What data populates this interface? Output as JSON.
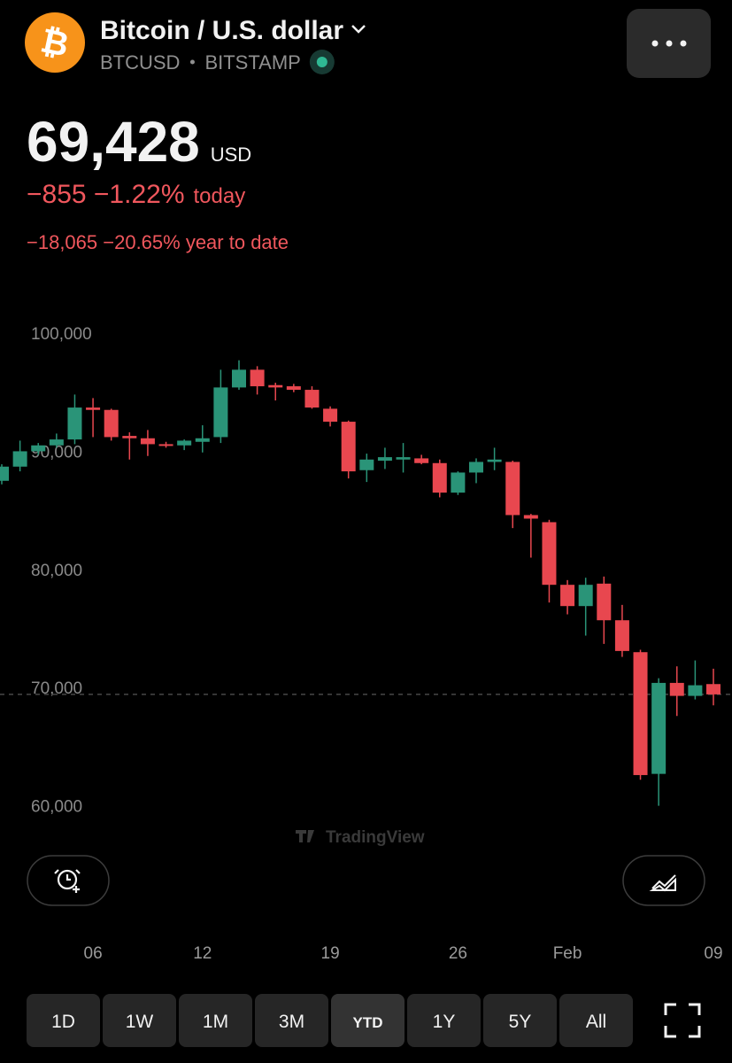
{
  "header": {
    "logo_glyph": "₿",
    "title": "Bitcoin / U.S. dollar",
    "symbol": "BTCUSD",
    "exchange": "BITSTAMP",
    "price": "69,428",
    "currency": "USD",
    "change_today": "−855 −1.22%",
    "today_label": "today",
    "change_ytd": "−18,065 −20.65% year to date"
  },
  "chart_data": {
    "type": "candlestick",
    "watermark": "TradingView",
    "categories": [
      null,
      null,
      null,
      null,
      null,
      "06",
      null,
      null,
      null,
      null,
      null,
      "12",
      null,
      null,
      null,
      null,
      null,
      null,
      "19",
      null,
      null,
      null,
      null,
      null,
      null,
      "26",
      null,
      null,
      null,
      null,
      null,
      "Feb",
      null,
      null,
      null,
      null,
      null,
      null,
      null,
      "09"
    ],
    "open": [
      87500,
      88700,
      90000,
      90500,
      91000,
      93700,
      93500,
      91300,
      91100,
      90600,
      90500,
      90800,
      91200,
      95400,
      96900,
      95600,
      95500,
      95200,
      93600,
      92500,
      88400,
      89200,
      89300,
      89400,
      89000,
      86500,
      88200,
      89100,
      89100,
      84600,
      84000,
      78700,
      76900,
      78800,
      75700,
      73000,
      62700,
      70400,
      69300,
      70300
    ],
    "high": [
      88900,
      90900,
      90700,
      91500,
      94800,
      94500,
      93600,
      91600,
      91800,
      90800,
      91000,
      92200,
      96900,
      97700,
      97200,
      95800,
      95700,
      95500,
      93800,
      92600,
      89800,
      90300,
      90700,
      89700,
      89300,
      88300,
      89400,
      90300,
      89200,
      84700,
      84200,
      79100,
      79300,
      79400,
      77000,
      73200,
      70800,
      71800,
      72300,
      71600
    ],
    "low": [
      87200,
      88300,
      89700,
      90300,
      90600,
      91200,
      90900,
      89300,
      89600,
      90300,
      90100,
      89900,
      90700,
      95200,
      94800,
      94300,
      95000,
      93600,
      92100,
      87700,
      87400,
      88500,
      88200,
      88900,
      86100,
      86300,
      87300,
      88400,
      83500,
      81000,
      77200,
      76200,
      74400,
      73700,
      72600,
      62200,
      60000,
      67600,
      69000,
      68500
    ],
    "close": [
      88700,
      90000,
      90500,
      91000,
      93700,
      93500,
      91200,
      91100,
      90600,
      90500,
      90900,
      91100,
      95400,
      96900,
      95500,
      95400,
      95200,
      93700,
      92500,
      88300,
      89300,
      89500,
      89500,
      89000,
      86500,
      88200,
      89100,
      89300,
      84600,
      84300,
      78700,
      76900,
      78700,
      75700,
      73100,
      62600,
      70400,
      69300,
      70200,
      69428
    ],
    "up_color": "#2a9478",
    "down_color": "#e8474f",
    "ylim": [
      57500,
      103000
    ],
    "yticks": [
      {
        "value": 60000,
        "label": "60,000"
      },
      {
        "value": 70000,
        "label": "70,000"
      },
      {
        "value": 80000,
        "label": "80,000"
      },
      {
        "value": 90000,
        "label": "90,000"
      },
      {
        "value": 100000,
        "label": "100,000"
      }
    ]
  },
  "controls": {
    "ranges": [
      "1D",
      "1W",
      "1M",
      "3M",
      "YTD",
      "1Y",
      "5Y",
      "All"
    ],
    "selected": "YTD"
  }
}
